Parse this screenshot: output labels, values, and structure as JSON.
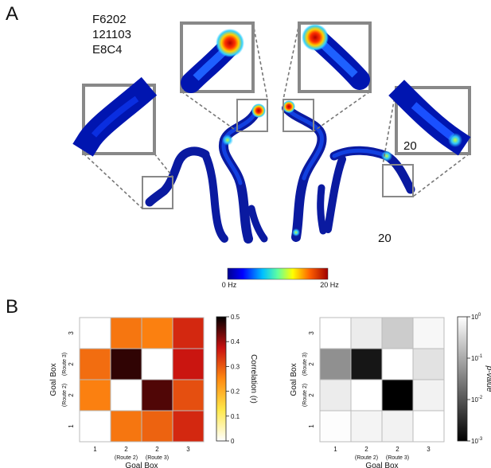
{
  "panel_a": {
    "letter": "A",
    "id_lines": [
      "F6202",
      "121103",
      "E8C4"
    ],
    "map_value_labels": [
      "20",
      "20"
    ],
    "colorbar": {
      "min_label": "0 Hz",
      "max_label": "20 Hz",
      "min": 0,
      "max": 20,
      "unit": "Hz"
    },
    "colors": {
      "low": "#0000a0",
      "mid": "#3cc6ff",
      "high": "#c80000",
      "frame": "#888888"
    }
  },
  "panel_b": {
    "letter": "B"
  },
  "chart_data": [
    {
      "type": "heatmap",
      "xlabel": "Goal Box",
      "ylabel": "Goal Box",
      "tick_labels": [
        "1",
        "2",
        "2",
        "3"
      ],
      "tick_sublabels": [
        "",
        "(Route 2)",
        "(Route 3)",
        ""
      ],
      "colorbar_label": "Correlation (r)",
      "colorbar_ticks": [
        0,
        0.1,
        0.2,
        0.3,
        0.4,
        0.5
      ],
      "vmin": 0,
      "vmax": 0.5,
      "colormap": "white-yellow-red-black",
      "values": [
        [
          null,
          0.27,
          0.26,
          0.35
        ],
        [
          0.28,
          0.47,
          null,
          0.37
        ],
        [
          0.26,
          null,
          0.45,
          0.31
        ],
        [
          null,
          0.27,
          0.29,
          0.35
        ]
      ]
    },
    {
      "type": "heatmap",
      "xlabel": "Goal Box",
      "ylabel": "Goal Box",
      "tick_labels": [
        "1",
        "2",
        "2",
        "3"
      ],
      "tick_sublabels": [
        "",
        "(Route 2)",
        "(Route 3)",
        ""
      ],
      "colorbar_label": "p-value",
      "colorbar_ticks": [
        "10^0",
        "10^-1",
        "10^-2",
        "10^-3"
      ],
      "scale": "log",
      "colormap": "gray",
      "values": [
        [
          null,
          0.6,
          0.25,
          0.8
        ],
        [
          0.05,
          0.0018,
          null,
          0.45
        ],
        [
          0.6,
          null,
          0.001,
          0.7
        ],
        [
          0.95,
          0.75,
          0.7,
          null
        ]
      ]
    }
  ]
}
